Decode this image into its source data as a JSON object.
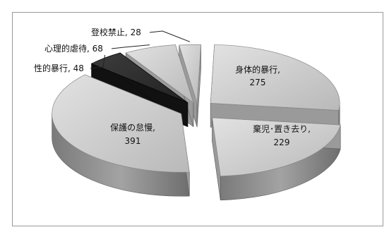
{
  "chart_data": {
    "type": "pie",
    "style": "3d-exploded",
    "slices": [
      {
        "label": "身体的暴行,",
        "value": 275
      },
      {
        "label": "棄児･置き去り,",
        "value": 229
      },
      {
        "label": "保護の怠慢,",
        "value": 391
      },
      {
        "label": "性的暴行, 48",
        "value": 48
      },
      {
        "label": "心理的虐待, 68",
        "value": 68
      },
      {
        "label": "登校禁止, 28",
        "value": 28
      }
    ],
    "colors": {
      "top": "#c9c9c9",
      "side": "#8c8c8c",
      "dark_top": "#333333",
      "dark_side": "#1a1a1a"
    },
    "value_labels": [
      "275",
      "229",
      "391"
    ]
  }
}
